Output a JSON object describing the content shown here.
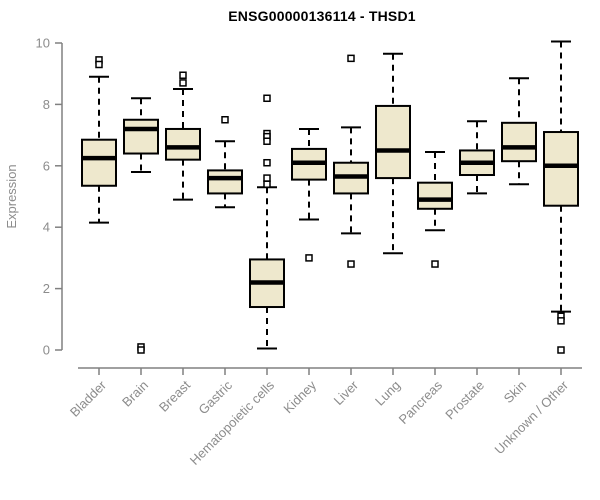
{
  "title": "ENSG00000136114 - THSD1",
  "chart_data": {
    "type": "box",
    "title": "ENSG00000136114 - THSD1",
    "xlabel": "",
    "ylabel": "Expression",
    "ylim": [
      0,
      10
    ],
    "yticks": [
      0,
      2,
      4,
      6,
      8,
      10
    ],
    "grid": false,
    "legend": "none",
    "categories": [
      "Bladder",
      "Brain",
      "Breast",
      "Gastric",
      "Hematopoietic cells",
      "Kidney",
      "Liver",
      "Lung",
      "Pancreas",
      "Prostate",
      "Skin",
      "Unknown / Other"
    ],
    "series": [
      {
        "category": "Bladder",
        "low": 4.15,
        "q1": 5.35,
        "median": 6.25,
        "q3": 6.85,
        "high": 8.9,
        "outliers": [
          9.45,
          9.3
        ]
      },
      {
        "category": "Brain",
        "low": 5.8,
        "q1": 6.4,
        "median": 7.2,
        "q3": 7.5,
        "high": 8.2,
        "outliers": [
          0.1,
          0.0
        ]
      },
      {
        "category": "Breast",
        "low": 4.9,
        "q1": 6.2,
        "median": 6.6,
        "q3": 7.2,
        "high": 8.5,
        "outliers": [
          8.95,
          8.7
        ]
      },
      {
        "category": "Gastric",
        "low": 4.65,
        "q1": 5.1,
        "median": 5.6,
        "q3": 5.85,
        "high": 6.8,
        "outliers": [
          7.5
        ]
      },
      {
        "category": "Hematopoietic cells",
        "low": 0.05,
        "q1": 1.4,
        "median": 2.2,
        "q3": 2.95,
        "high": 5.3,
        "outliers": [
          8.2,
          7.05,
          6.95,
          6.8,
          6.1,
          5.6,
          5.4
        ]
      },
      {
        "category": "Kidney",
        "low": 4.25,
        "q1": 5.55,
        "median": 6.1,
        "q3": 6.55,
        "high": 7.2,
        "outliers": [
          3.0
        ]
      },
      {
        "category": "Liver",
        "low": 3.8,
        "q1": 5.1,
        "median": 5.65,
        "q3": 6.1,
        "high": 7.25,
        "outliers": [
          9.5,
          2.8
        ]
      },
      {
        "category": "Lung",
        "low": 3.15,
        "q1": 5.6,
        "median": 6.5,
        "q3": 7.95,
        "high": 9.65,
        "outliers": []
      },
      {
        "category": "Pancreas",
        "low": 3.9,
        "q1": 4.6,
        "median": 4.9,
        "q3": 5.45,
        "high": 6.45,
        "outliers": [
          2.8
        ]
      },
      {
        "category": "Prostate",
        "low": 5.1,
        "q1": 5.7,
        "median": 6.1,
        "q3": 6.5,
        "high": 7.45,
        "outliers": []
      },
      {
        "category": "Skin",
        "low": 5.4,
        "q1": 6.15,
        "median": 6.6,
        "q3": 7.4,
        "high": 8.85,
        "outliers": []
      },
      {
        "category": "Unknown / Other",
        "low": 1.25,
        "q1": 4.7,
        "median": 6.0,
        "q3": 7.1,
        "high": 10.05,
        "outliers": [
          1.1,
          0.95,
          0.0
        ]
      }
    ],
    "colors": {
      "box_fill": "#EEE8CD",
      "box_stroke": "#000000",
      "median": "#000000",
      "whisker": "#000000",
      "outlier_stroke": "#000000",
      "axis": "#808080",
      "tick_label": "#8c8c8c",
      "title": "#000000",
      "background": "#ffffff"
    }
  }
}
